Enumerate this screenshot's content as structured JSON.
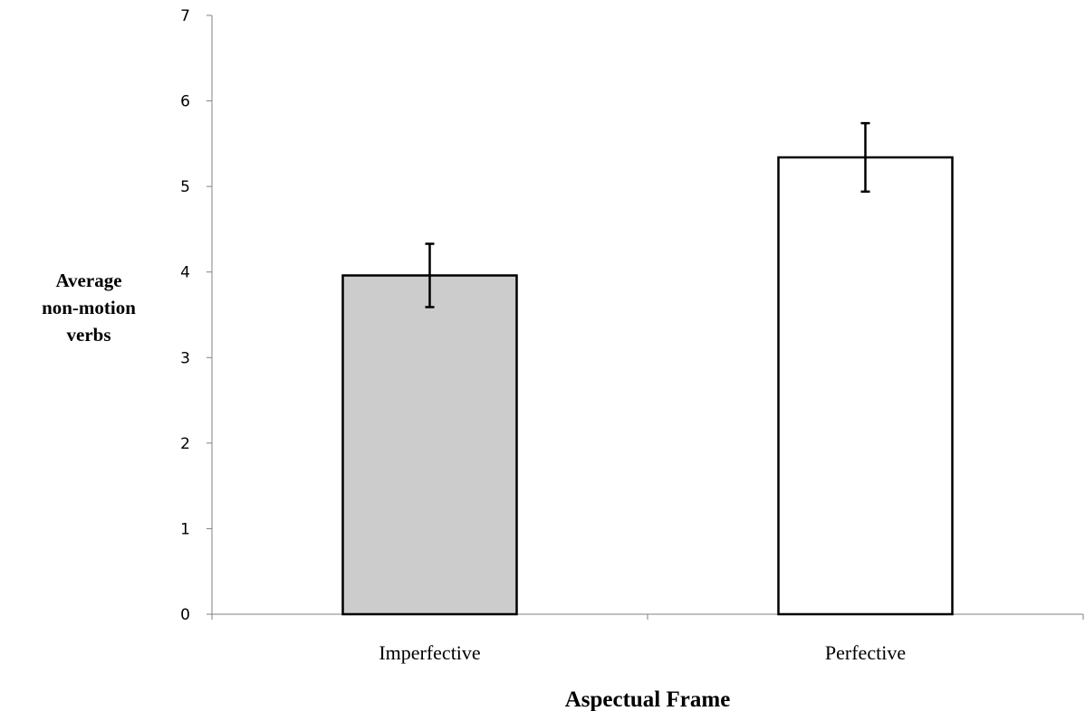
{
  "chart_data": {
    "type": "bar",
    "categories": [
      "Imperfective",
      "Perfective"
    ],
    "values": [
      3.96,
      5.34
    ],
    "error": [
      0.37,
      0.4
    ],
    "colors": [
      "#cccccc",
      "#ffffff"
    ],
    "xlabel": "Aspectual Frame",
    "ylabel_lines": [
      "Average",
      "non-motion",
      "verbs"
    ],
    "ylim": [
      0,
      7
    ],
    "yticks": [
      "0",
      "1",
      "2",
      "3",
      "4",
      "5",
      "6",
      "7"
    ],
    "grid": false
  }
}
